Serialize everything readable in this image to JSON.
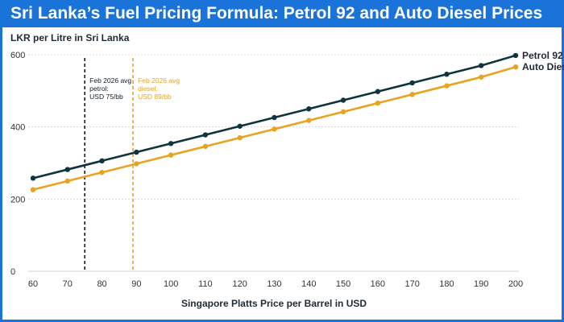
{
  "page_title": "Sri Lanka’s Fuel Pricing Formula: Petrol 92 and Auto Diesel Prices",
  "colors": {
    "title_bg": "#1a73d9",
    "petrol": "#0e3440",
    "diesel": "#e8a321",
    "grid": "#d8d8d8"
  },
  "chart_data": {
    "type": "line",
    "ylabel": "LKR per Litre in Sri Lanka",
    "xlabel": "Singapore Platts Price per Barrel in USD",
    "x": [
      60,
      70,
      80,
      90,
      100,
      110,
      120,
      130,
      140,
      150,
      160,
      170,
      180,
      190,
      200
    ],
    "xlim": [
      60,
      200
    ],
    "ylim": [
      0,
      600
    ],
    "yticks": [
      0,
      200,
      400,
      600
    ],
    "series": [
      {
        "name": "Petrol 92",
        "color": "#0e3440",
        "values": [
          258,
          282,
          306,
          330,
          354,
          378,
          402,
          426,
          450,
          474,
          498,
          522,
          546,
          570,
          598
        ]
      },
      {
        "name": "Auto Diesel",
        "legend_label": "Auto Dies",
        "color": "#e8a321",
        "values": [
          226,
          250,
          274,
          298,
          322,
          346,
          370,
          394,
          418,
          442,
          466,
          490,
          514,
          538,
          566
        ]
      }
    ],
    "reference_lines": [
      {
        "x": 75,
        "color": "#0e1f2a",
        "lines": [
          "Feb 2026 avg",
          "petrol:",
          "USD 75/bb"
        ]
      },
      {
        "x": 89,
        "color": "#e8a321",
        "lines": [
          "Feb 2026 avg",
          "diesel:",
          "USD 89/bb"
        ]
      }
    ]
  }
}
